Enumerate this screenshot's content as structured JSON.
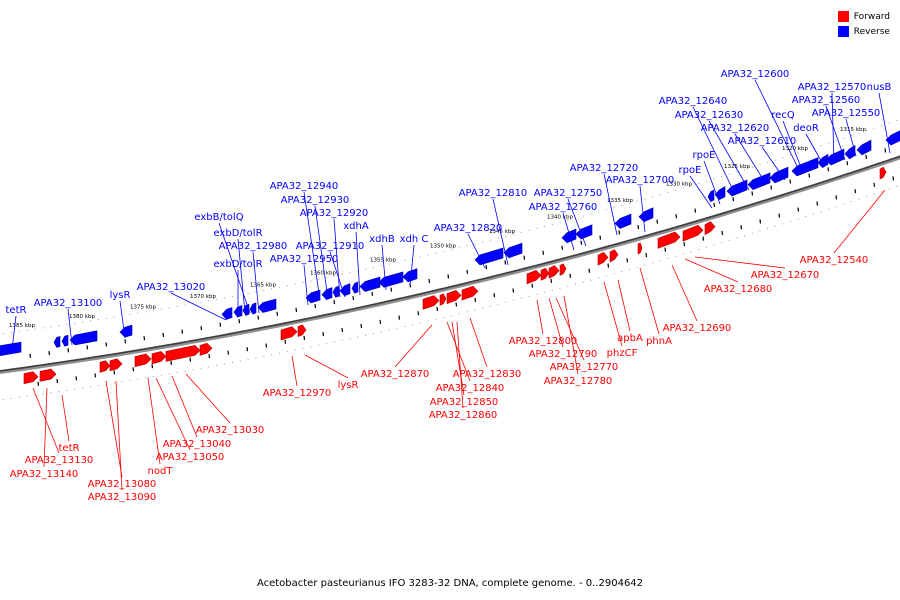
{
  "legend": {
    "forward_label": "Forward",
    "reverse_label": "Reverse",
    "forward_color": "#ff0000",
    "reverse_color": "#0000ff"
  },
  "footer": "Acetobacter pasteurianus IFO 3283-32 DNA, complete genome. - 0..2904642",
  "scale_labels": [
    "1385 kbp",
    "1380 kbp",
    "1375 kbp",
    "1370 kbp",
    "1365 kbp",
    "1360 kbp",
    "1355 kbp",
    "1350 kbp",
    "1345 kbp",
    "1340 kbp",
    "1335 kbp",
    "1330 kbp",
    "1325 kbp",
    "1320 kbp",
    "1315 kbp"
  ],
  "reverse_genes": [
    "tetR",
    "APA32_13100",
    "lysR",
    "APA32_13020",
    "exbD/tolR",
    "exbD/tolR",
    "exbB/tolQ",
    "APA32_12980",
    "APA32_12950",
    "APA32_12940",
    "APA32_12930",
    "APA32_12920",
    "APA32_12910",
    "xdhA",
    "xdhB",
    "xdh C",
    "APA32_12820",
    "APA32_12810",
    "APA32_12760",
    "APA32_12750",
    "APA32_12720",
    "APA32_12700",
    "rpoE",
    "rpoE",
    "APA32_12640",
    "APA32_12630",
    "APA32_12620",
    "APA32_12610",
    "APA32_12600",
    "recQ",
    "deoR",
    "APA32_12570",
    "APA32_12560",
    "APA32_12550",
    "nusB"
  ],
  "forward_genes": [
    "APA32_13130",
    "APA32_13140",
    "tetR",
    "APA32_13080",
    "APA32_13090",
    "nodT",
    "APA32_13050",
    "APA32_13040",
    "APA32_13030",
    "APA32_12970",
    "lysR",
    "APA32_12870",
    "APA32_12840",
    "APA32_12850",
    "APA32_12860",
    "APA32_12830",
    "APA32_12800",
    "APA32_12790",
    "APA32_12770",
    "APA32_12780",
    "phzCF",
    "apbA",
    "phnA",
    "APA32_12690",
    "APA32_12680",
    "APA32_12670",
    "APA32_12540"
  ]
}
